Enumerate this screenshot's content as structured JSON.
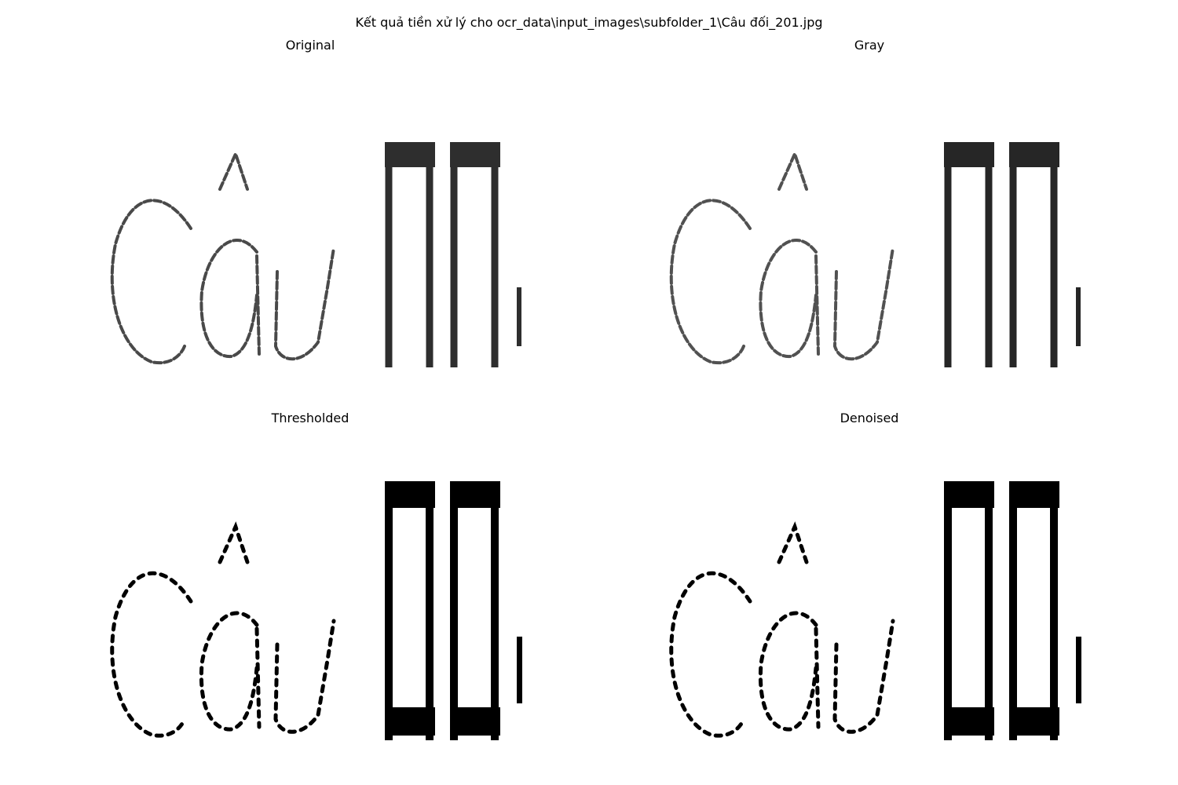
{
  "figure": {
    "suptitle": "Kết quả tiền xử lý cho ocr_data\\input_images\\subfolder_1\\Câu đối_201.jpg"
  },
  "panels": [
    {
      "title": "Original"
    },
    {
      "title": "Gray"
    },
    {
      "title": "Thresholded"
    },
    {
      "title": "Denoised"
    }
  ]
}
